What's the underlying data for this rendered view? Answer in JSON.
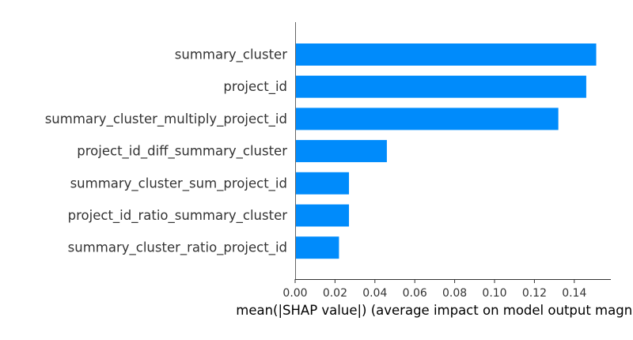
{
  "chart_data": {
    "type": "bar",
    "orientation": "horizontal",
    "categories": [
      "summary_cluster",
      "project_id",
      "summary_cluster_multiply_project_id",
      "project_id_diff_summary_cluster",
      "summary_cluster_sum_project_id",
      "project_id_ratio_summary_cluster",
      "summary_cluster_ratio_project_id"
    ],
    "values": [
      0.151,
      0.146,
      0.132,
      0.046,
      0.027,
      0.027,
      0.022
    ],
    "xlabel": "mean(|SHAP value|) (average impact on model output magnitude)",
    "ylabel": "",
    "title": "",
    "xlim": [
      0,
      0.158
    ],
    "x_ticks": [
      0.0,
      0.02,
      0.04,
      0.06,
      0.08,
      0.1,
      0.12,
      0.14
    ],
    "x_tick_labels": [
      "0.00",
      "0.02",
      "0.04",
      "0.06",
      "0.08",
      "0.10",
      "0.12",
      "0.14"
    ],
    "bar_color": "#008bfb",
    "grid": false,
    "legend": "none"
  }
}
